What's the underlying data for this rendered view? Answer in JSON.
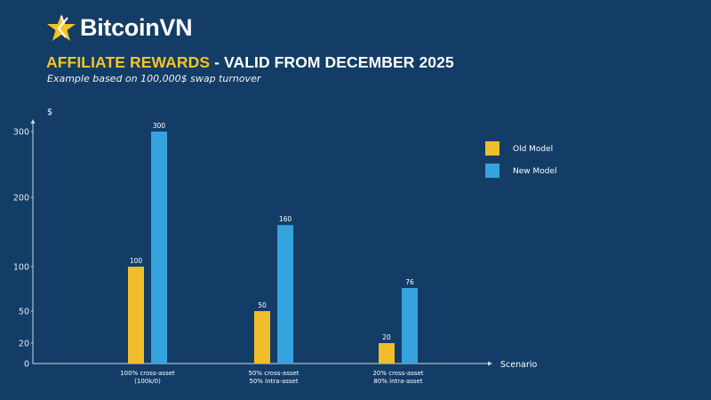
{
  "brand": {
    "name": "BitcoinVN",
    "logo_icon": "star-icon"
  },
  "header": {
    "title_highlight": "AFFILIATE REWARDS",
    "title_rest": " - VALID FROM DECEMBER 2025",
    "subtitle": "Example based on 100,000$ swap turnover"
  },
  "colors": {
    "background": "#133d66",
    "old_model": "#f0bd2b",
    "new_model": "#36a3df",
    "title_accent": "#f5c524"
  },
  "chart_data": {
    "type": "bar",
    "title": "AFFILIATE REWARDS - VALID FROM DECEMBER 2025",
    "subtitle": "Example based on 100,000$ swap turnover",
    "xlabel": "Scenario",
    "ylabel": "$",
    "ylim": [
      0,
      300
    ],
    "yticks": [
      0,
      20,
      50,
      100,
      200,
      300
    ],
    "grid": false,
    "legend_position": "top-right",
    "categories": [
      [
        "100% cross-asset",
        "(100k/0)"
      ],
      [
        "50% cross-asset",
        "50% intra-asset"
      ],
      [
        "20% cross-asset",
        "80% intra-asset"
      ]
    ],
    "series": [
      {
        "name": "Old Model",
        "color": "#f0bd2b",
        "values": [
          100,
          50,
          20
        ]
      },
      {
        "name": "New Model",
        "color": "#36a3df",
        "values": [
          300,
          160,
          76
        ]
      }
    ]
  }
}
